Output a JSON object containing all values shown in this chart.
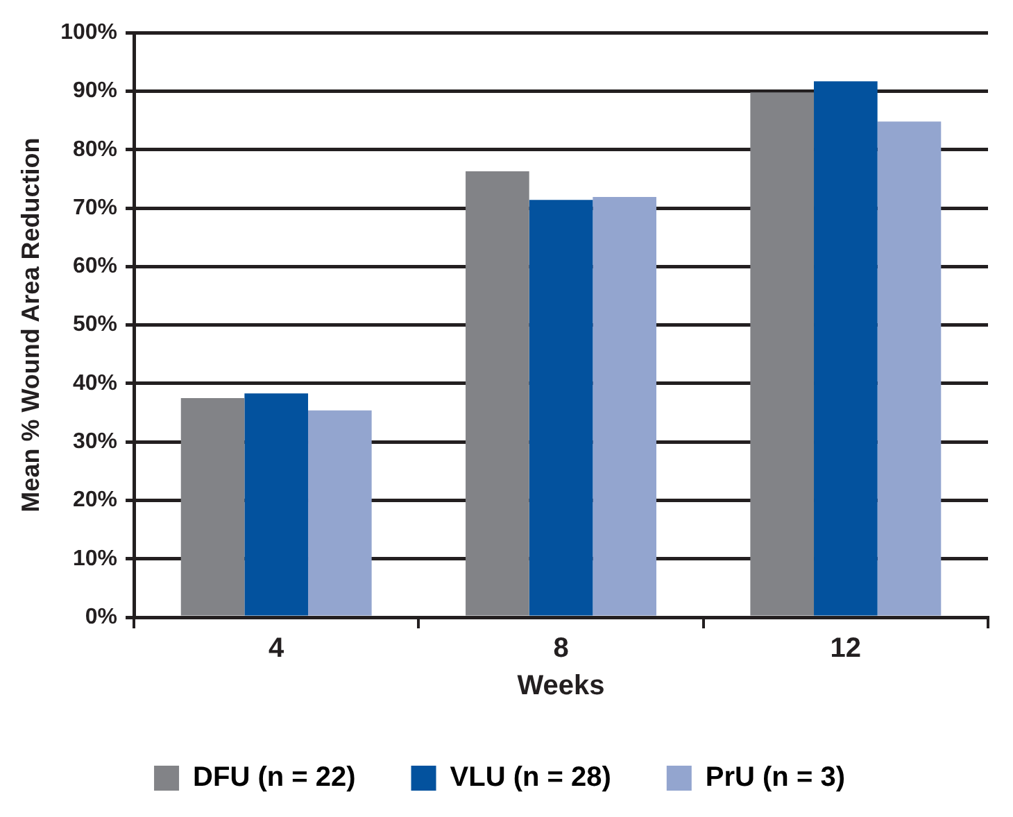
{
  "chart_data": {
    "type": "bar",
    "xlabel": "Weeks",
    "ylabel": "Mean % Wound Area Reduction",
    "categories": [
      "4",
      "8",
      "12"
    ],
    "series": [
      {
        "name": "DFU (n = 22)",
        "color": "#828387",
        "values": [
          37.5,
          76.3,
          89.8
        ]
      },
      {
        "name": "VLU (n = 28)",
        "color": "#03529e",
        "values": [
          38.3,
          71.4,
          91.7
        ]
      },
      {
        "name": "PrU (n = 3)",
        "color": "#93a5cf",
        "values": [
          35.4,
          71.9,
          84.8
        ]
      }
    ],
    "ylim": [
      0,
      100
    ],
    "yticks": [
      {
        "value": 0,
        "label": "0%"
      },
      {
        "value": 10,
        "label": "10%"
      },
      {
        "value": 20,
        "label": "20%"
      },
      {
        "value": 30,
        "label": "30%"
      },
      {
        "value": 40,
        "label": "40%"
      },
      {
        "value": 50,
        "label": "50%"
      },
      {
        "value": 60,
        "label": "60%"
      },
      {
        "value": 70,
        "label": "70%"
      },
      {
        "value": 80,
        "label": "80%"
      },
      {
        "value": 90,
        "label": "90%"
      },
      {
        "value": 100,
        "label": "100%"
      }
    ],
    "grid": "y",
    "legend": "bottom"
  }
}
